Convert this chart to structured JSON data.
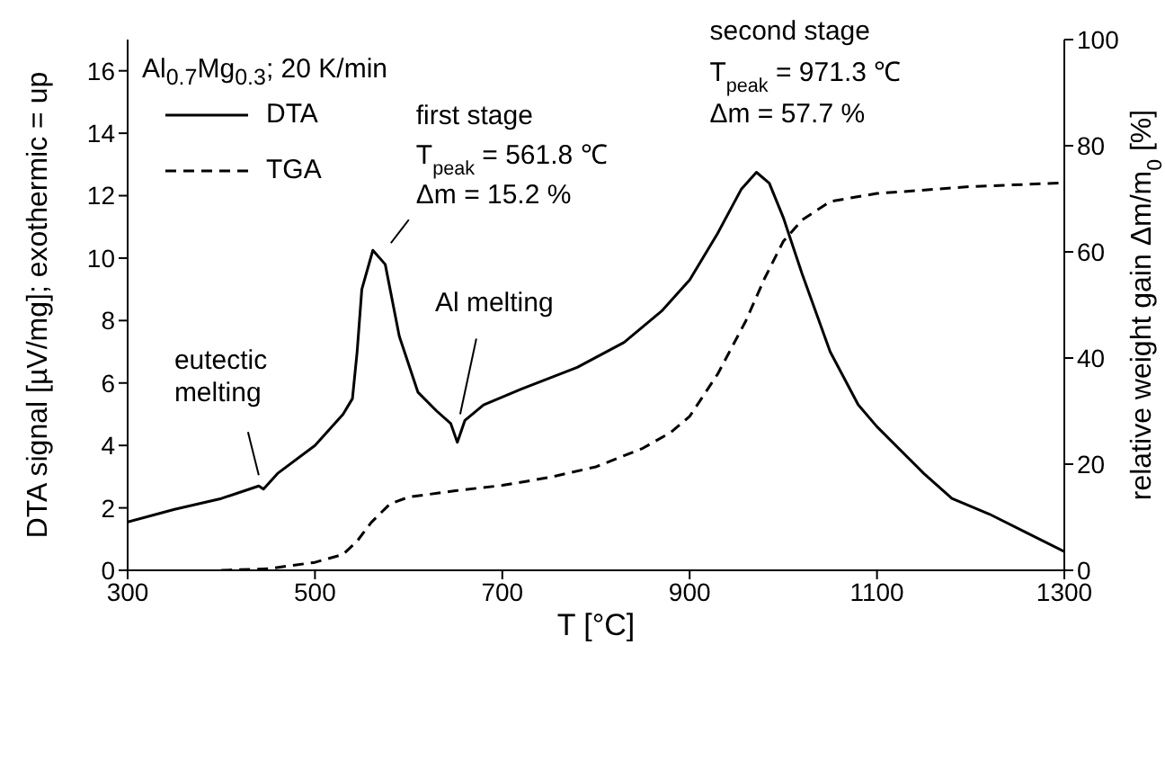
{
  "chart_data": {
    "type": "line",
    "title": "Al$_{0.7}$Mg$_{0.3}$; 20 K/min",
    "xlabel": "T [°C]",
    "ylabel": "DTA signal [µV/mg]; exothermic = up",
    "y2label": "relative weight gain Δm/m$_{0}$ [%]",
    "xlim": [
      300,
      1300
    ],
    "xticks": [
      300,
      500,
      700,
      900,
      1100,
      1300
    ],
    "ylim": [
      0,
      17
    ],
    "yticks": [
      0,
      2,
      4,
      6,
      8,
      10,
      12,
      14,
      16
    ],
    "y2lim": [
      0,
      100
    ],
    "y2ticks": [
      0,
      20,
      40,
      60,
      80,
      100
    ],
    "grid": false,
    "legend": "top left",
    "marker": "none",
    "series": [
      {
        "name": "DTA",
        "color": "#000000",
        "line_style": "solid",
        "x": [
          300,
          350,
          400,
          430,
          440,
          445,
          460,
          500,
          530,
          540,
          545,
          550,
          561.8,
          575,
          590,
          610,
          630,
          645,
          652,
          660,
          680,
          720,
          780,
          830,
          870,
          900,
          930,
          955,
          971.3,
          985,
          1000,
          1020,
          1050,
          1080,
          1100,
          1150,
          1180,
          1220,
          1260,
          1300
        ],
        "values": [
          1.55,
          1.95,
          2.3,
          2.6,
          2.7,
          2.6,
          3.1,
          4.0,
          5.0,
          5.5,
          7.0,
          9.0,
          10.25,
          9.8,
          7.5,
          5.7,
          5.1,
          4.7,
          4.1,
          4.8,
          5.3,
          5.8,
          6.5,
          7.3,
          8.3,
          9.3,
          10.8,
          12.2,
          12.75,
          12.4,
          11.3,
          9.5,
          7.0,
          5.3,
          4.6,
          3.1,
          2.3,
          1.8,
          1.2,
          0.6
        ]
      },
      {
        "name": "TGA",
        "color": "#000000",
        "line_style": "dashed",
        "axis": "y2",
        "x": [
          400,
          450,
          500,
          530,
          545,
          560,
          580,
          600,
          650,
          700,
          750,
          800,
          850,
          880,
          900,
          930,
          960,
          980,
          1000,
          1020,
          1050,
          1100,
          1200,
          1300
        ],
        "values": [
          0,
          0.3,
          1.5,
          3,
          5.5,
          9,
          12.5,
          13.8,
          15,
          16,
          17.5,
          19.5,
          23,
          26,
          29,
          37,
          47,
          55,
          62,
          66,
          69.5,
          71,
          72.3,
          73
        ]
      }
    ],
    "annotations": [
      {
        "text": "eutectic\nmelting",
        "x": 440,
        "y": 2.7
      },
      {
        "text": "Al melting",
        "x": 655,
        "y": 5.0
      },
      {
        "text": "first stage\nT$_{peak}$ = 561.8 ℃\nΔm = 15.2 %",
        "x": 561.8,
        "y": 10.25
      },
      {
        "text": "second stage\nT$_{peak}$ = 971.3 ℃\nΔm = 57.7 %",
        "x": 971.3,
        "y": 12.75
      }
    ]
  }
}
